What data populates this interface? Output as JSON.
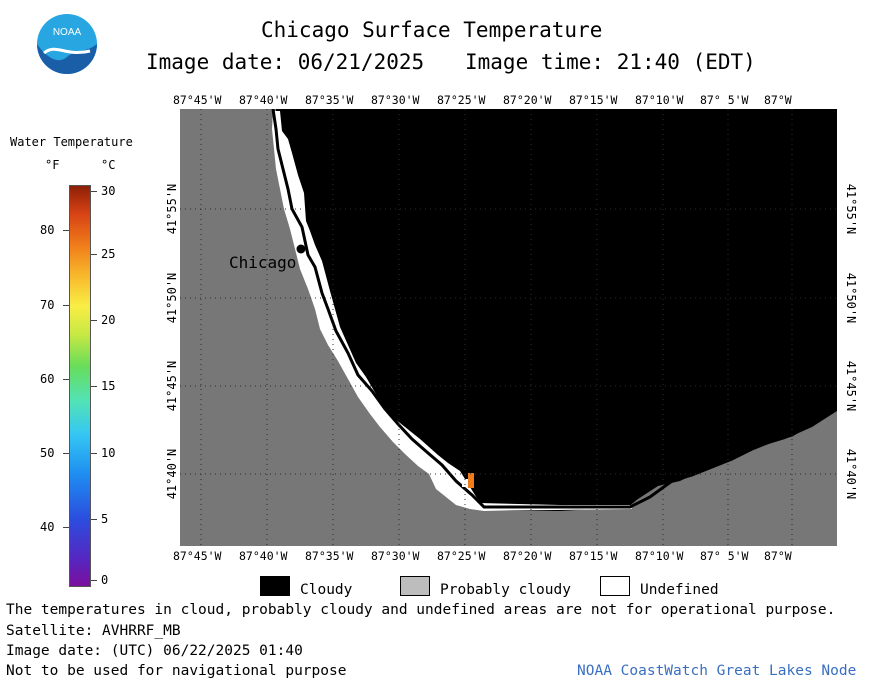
{
  "title": "Chicago Surface Temperature",
  "image_date_line": "Image date: 06/21/2025",
  "image_time_line": "Image time: 21:40 (EDT)",
  "legend": {
    "title": "Water Temperature",
    "unit_f": "°F",
    "unit_c": "°C",
    "f_ticks": [
      "80",
      "70",
      "60",
      "50",
      "40"
    ],
    "c_ticks": [
      "30",
      "25",
      "20",
      "15",
      "10",
      "5",
      "0"
    ]
  },
  "map": {
    "top_lon_labels": [
      "87°45'W",
      "87°40'W",
      "87°35'W",
      "87°30'W",
      "87°25'W",
      "87°20'W",
      "87°15'W",
      "87°10'W",
      "87° 5'W",
      "87°W"
    ],
    "bottom_lon_labels": [
      "87°45'W",
      "87°40'W",
      "87°35'W",
      "87°30'W",
      "87°25'W",
      "87°20'W",
      "87°15'W",
      "87°10'W",
      "87° 5'W",
      "87°W"
    ],
    "lat_labels": [
      "41°55'N",
      "41°50'N",
      "41°45'N",
      "41°40'N"
    ],
    "city_label": "Chicago",
    "colors": {
      "land": "#777777",
      "cloud": "#000000",
      "undefined": "#ffffff",
      "grid": "#2b2b2b"
    }
  },
  "key": {
    "cloudy": "Cloudy",
    "probably_cloudy": "Probably cloudy",
    "undefined": "Undefined"
  },
  "footer": {
    "note": "The temperatures in cloud, probably cloudy and undefined areas are not for operational purpose.",
    "satellite": "Satellite: AVHRRF_MB",
    "utc_date": "Image date: (UTC) 06/22/2025  01:40",
    "nav_warning": "Not to be used for navigational purpose",
    "credit": "NOAA CoastWatch Great Lakes Node"
  },
  "logo": {
    "text": "NOAA",
    "colors": {
      "outer": "#1b5ea8",
      "inner": "#27a6e1"
    }
  }
}
